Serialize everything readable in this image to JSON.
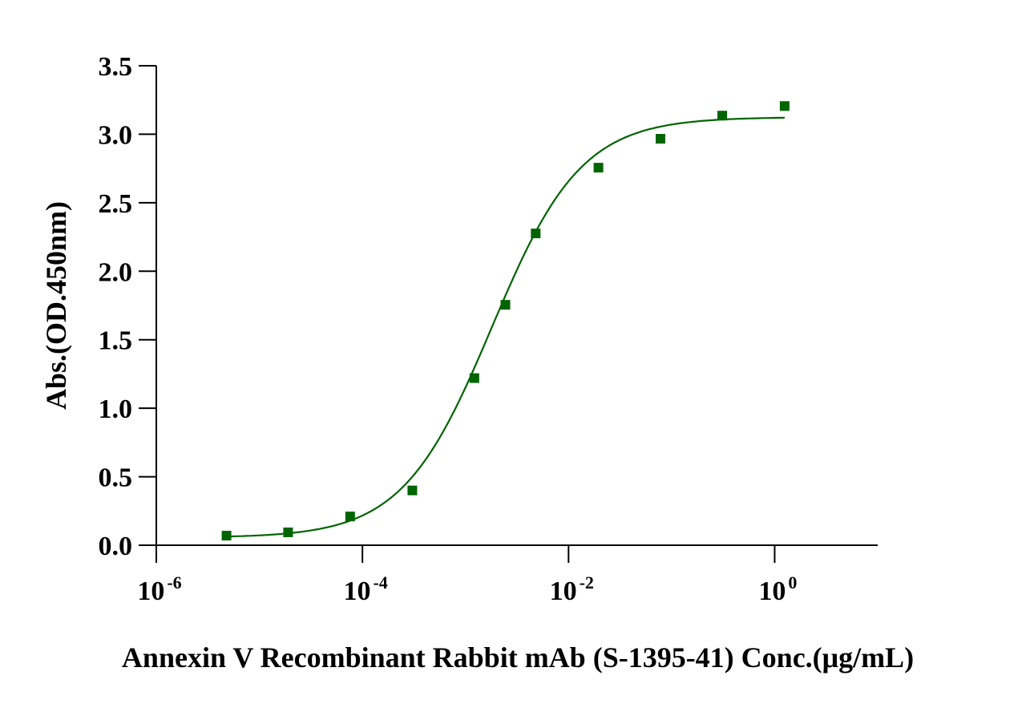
{
  "chart_data": {
    "type": "scatter",
    "xscale": "log",
    "xlabel": "Annexin V Recombinant Rabbit mAb (S-1395-41) Conc.(μg/mL)",
    "ylabel": "Abs.(OD.450nm)",
    "xlim": [
      1e-06,
      10
    ],
    "ylim": [
      0,
      3.5
    ],
    "x_ticks": [
      {
        "base": "10",
        "exp": "-6",
        "value": 1e-06
      },
      {
        "base": "10",
        "exp": "-4",
        "value": 0.0001
      },
      {
        "base": "10",
        "exp": "-2",
        "value": 0.01
      },
      {
        "base": "10",
        "exp": "0",
        "value": 1
      }
    ],
    "y_ticks": [
      "0.0",
      "0.5",
      "1.0",
      "1.5",
      "2.0",
      "2.5",
      "3.0",
      "3.5"
    ],
    "series": [
      {
        "name": "Annexin V Recombinant Rabbit mAb",
        "color": "#006400",
        "marker": "square",
        "x": [
          4.8e-06,
          1.9e-05,
          7.6e-05,
          0.000305,
          0.00122,
          0.00244,
          0.0048,
          0.0195,
          0.078,
          0.31,
          1.25
        ],
        "y": [
          0.07,
          0.094,
          0.21,
          0.4,
          1.22,
          1.755,
          2.276,
          2.756,
          2.967,
          3.136,
          3.206
        ]
      }
    ],
    "fit": {
      "model": "4PL",
      "bottom": 0.055,
      "top": 3.125,
      "ec50": 0.0018,
      "hill": 1.0,
      "x_range": [
        4.8e-06,
        1.25
      ],
      "color": "#006400"
    },
    "grid": false,
    "legend": "none"
  }
}
